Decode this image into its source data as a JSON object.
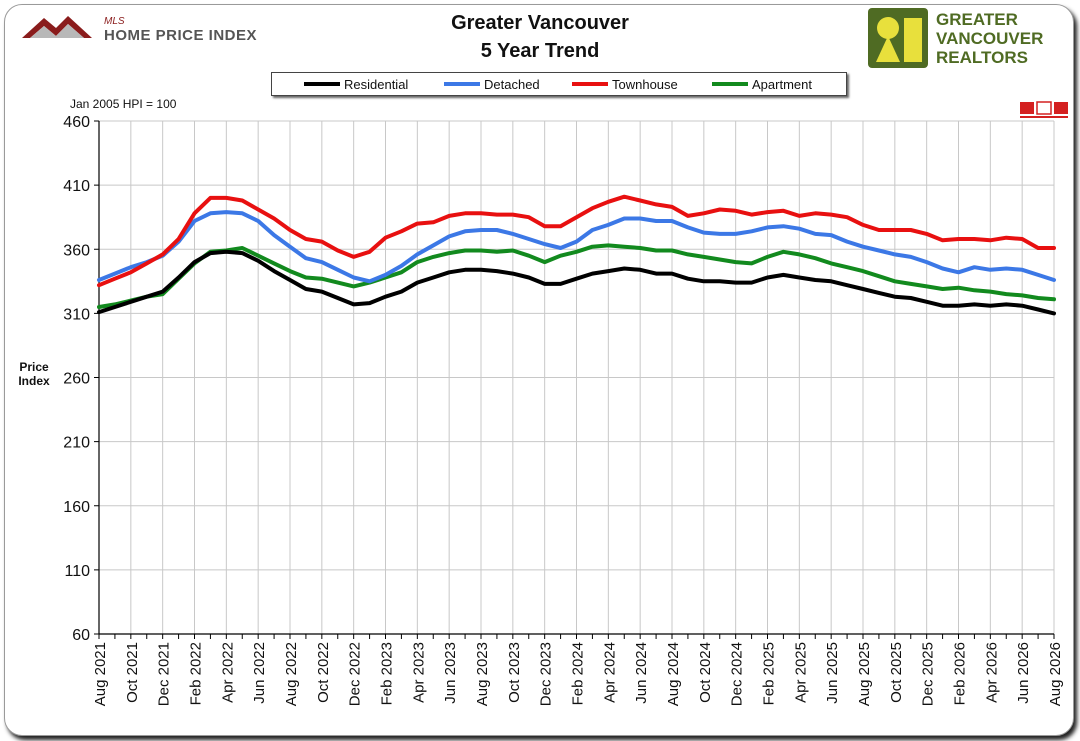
{
  "header": {
    "title_line1": "Greater Vancouver",
    "title_line2": "5 Year Trend"
  },
  "logos": {
    "left_mls": "MLS",
    "left_text": "HOME PRICE INDEX",
    "right_line1": "GREATER",
    "right_line2": "VANCOUVER",
    "right_line3": "REALTORS"
  },
  "note": "Jan 2005 HPI = 100",
  "colors": {
    "residential": "#000000",
    "detached": "#3c78e6",
    "townhouse": "#e81010",
    "apartment": "#128a1e",
    "grid": "#c8c8c8",
    "brand_green": "#5a7a2c",
    "brand_yellow": "#e8e03c"
  },
  "chart_data": {
    "type": "line",
    "ylabel": "Price Index",
    "ylim": [
      60,
      460
    ],
    "yticks": [
      60,
      110,
      160,
      210,
      260,
      310,
      360,
      410,
      460
    ],
    "grid": true,
    "legend_position": "top",
    "x": [
      "Aug 2021",
      "Sep 2021",
      "Oct 2021",
      "Nov 2021",
      "Dec 2021",
      "Jan 2022",
      "Feb 2022",
      "Mar 2022",
      "Apr 2022",
      "May 2022",
      "Jun 2022",
      "Jul 2022",
      "Aug 2022",
      "Sep 2022",
      "Oct 2022",
      "Nov 2022",
      "Dec 2022",
      "Jan 2023",
      "Feb 2023",
      "Mar 2023",
      "Apr 2023",
      "May 2023",
      "Jun 2023",
      "Jul 2023",
      "Aug 2023",
      "Sep 2023",
      "Oct 2023",
      "Nov 2023",
      "Dec 2023",
      "Jan 2024",
      "Feb 2024",
      "Mar 2024",
      "Apr 2024",
      "May 2024",
      "Jun 2024",
      "Jul 2024",
      "Aug 2024",
      "Sep 2024",
      "Oct 2024",
      "Nov 2024",
      "Dec 2024",
      "Jan 2025",
      "Feb 2025",
      "Mar 2025",
      "Apr 2025",
      "May 2025",
      "Jun 2025",
      "Jul 2025",
      "Aug 2025",
      "Sep 2025",
      "Oct 2025",
      "Nov 2025",
      "Dec 2025",
      "Jan 2026",
      "Feb 2026",
      "Mar 2026",
      "Apr 2026",
      "May 2026",
      "Jun 2026",
      "Jul 2026",
      "Aug 2026"
    ],
    "xtick_labels": [
      "Aug 2021",
      "Oct 2021",
      "Dec 2021",
      "Feb 2022",
      "Apr 2022",
      "Jun 2022",
      "Aug 2022",
      "Oct 2022",
      "Dec 2022",
      "Feb 2023",
      "Apr 2023",
      "Jun 2023",
      "Aug 2023",
      "Oct 2023",
      "Dec 2023",
      "Feb 2024",
      "Apr 2024",
      "Jun 2024",
      "Aug 2024",
      "Oct 2024",
      "Dec 2024",
      "Feb 2025",
      "Apr 2025",
      "Jun 2025",
      "Aug 2025",
      "Oct 2025",
      "Dec 2025",
      "Feb 2026",
      "Apr 2026",
      "Jun 2026",
      "Aug 2026"
    ],
    "series": [
      {
        "name": "Residential",
        "key": "residential",
        "values": [
          311,
          315,
          319,
          323,
          327,
          338,
          350,
          357,
          358,
          357,
          351,
          343,
          336,
          329,
          327,
          322,
          317,
          318,
          323,
          327,
          334,
          338,
          342,
          344,
          344,
          343,
          341,
          338,
          333,
          333,
          337,
          341,
          343,
          345,
          344,
          341,
          341,
          337,
          335,
          335,
          334,
          334,
          338,
          340,
          338,
          336,
          335,
          332,
          329,
          326,
          323,
          322,
          319,
          316,
          316,
          317,
          316,
          317,
          316,
          313,
          310
        ]
      },
      {
        "name": "Detached",
        "key": "detached",
        "values": [
          336,
          341,
          346,
          350,
          355,
          366,
          382,
          388,
          389,
          388,
          382,
          371,
          362,
          353,
          350,
          344,
          338,
          335,
          340,
          347,
          356,
          363,
          370,
          374,
          375,
          375,
          372,
          368,
          364,
          361,
          366,
          375,
          379,
          384,
          384,
          382,
          382,
          377,
          373,
          372,
          372,
          374,
          377,
          378,
          376,
          372,
          371,
          366,
          362,
          359,
          356,
          354,
          350,
          345,
          342,
          346,
          344,
          345,
          344,
          340,
          336
        ]
      },
      {
        "name": "Townhouse",
        "key": "townhouse",
        "values": [
          332,
          337,
          342,
          349,
          356,
          368,
          388,
          400,
          400,
          398,
          391,
          384,
          375,
          368,
          366,
          359,
          354,
          358,
          369,
          374,
          380,
          381,
          386,
          388,
          388,
          387,
          387,
          385,
          378,
          378,
          385,
          392,
          397,
          401,
          398,
          395,
          393,
          386,
          388,
          391,
          390,
          387,
          389,
          390,
          386,
          388,
          387,
          385,
          379,
          375,
          375,
          375,
          372,
          367,
          368,
          368,
          367,
          369,
          368,
          361,
          361
        ]
      },
      {
        "name": "Apartment",
        "key": "apartment",
        "values": [
          315,
          317,
          320,
          323,
          325,
          337,
          349,
          358,
          359,
          361,
          355,
          349,
          343,
          338,
          337,
          334,
          331,
          334,
          338,
          342,
          350,
          354,
          357,
          359,
          359,
          358,
          359,
          355,
          350,
          355,
          358,
          362,
          363,
          362,
          361,
          359,
          359,
          356,
          354,
          352,
          350,
          349,
          354,
          358,
          356,
          353,
          349,
          346,
          343,
          339,
          335,
          333,
          331,
          329,
          330,
          328,
          327,
          325,
          324,
          322,
          321
        ]
      }
    ]
  }
}
